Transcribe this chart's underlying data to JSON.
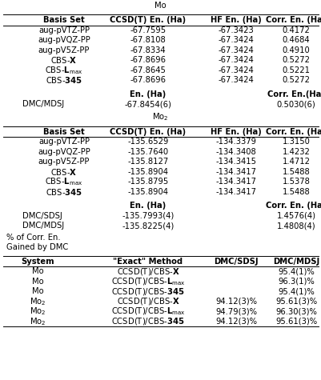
{
  "mo_rows": [
    [
      "aug-pVTZ-PP",
      "-67.7595",
      "-67.3423",
      "0.4172"
    ],
    [
      "aug-pVQZ-PP",
      "-67.8108",
      "-67.3424",
      "0.4684"
    ],
    [
      "aug-pV5Z-PP",
      "-67.8334",
      "-67.3424",
      "0.4910"
    ],
    [
      "CBS-$\\mathbf{X}$",
      "-67.8696",
      "-67.3424",
      "0.5272"
    ],
    [
      "CBS-$\\mathbf{L}$$_{\\mathrm{max}}$",
      "-67.8645",
      "-67.3424",
      "0.5221"
    ],
    [
      "CBS-$\\mathbf{345}$",
      "-67.8696",
      "-67.3424",
      "0.5272"
    ]
  ],
  "mo_dmc_rows": [
    [
      "DMC/MDSJ",
      "-67.8454(6)",
      "",
      "0.5030(6)"
    ]
  ],
  "mo2_rows": [
    [
      "aug-pVTZ-PP",
      "-135.6529",
      "-134.3379",
      "1.3150"
    ],
    [
      "aug-pVQZ-PP",
      "-135.7640",
      "-134.3408",
      "1.4232"
    ],
    [
      "aug-pV5Z-PP",
      "-135.8127",
      "-134.3415",
      "1.4712"
    ],
    [
      "CBS-$\\mathbf{X}$",
      "-135.8904",
      "-134.3417",
      "1.5488"
    ],
    [
      "CBS-$\\mathbf{L}$$_{\\mathrm{max}}$",
      "-135.8795",
      "-134.3417",
      "1.5378"
    ],
    [
      "CBS-$\\mathbf{345}$",
      "-135.8904",
      "-134.3417",
      "1.5488"
    ]
  ],
  "mo2_dmc_rows": [
    [
      "DMC/SDSJ",
      "-135.7993(4)",
      "",
      "1.4576(4)"
    ],
    [
      "DMC/MDSJ",
      "-135.8225(4)",
      "",
      "1.4808(4)"
    ]
  ],
  "pct_rows": [
    [
      "Mo",
      "CCSD(T)/CBS-$\\mathbf{X}$",
      "",
      "95.4(1)%"
    ],
    [
      "Mo",
      "CCSD(T)/CBS-$\\mathbf{L}$$_{\\mathrm{max}}$",
      "",
      "96.3(1)%"
    ],
    [
      "Mo",
      "CCSD(T)/CBS-$\\mathbf{345}$",
      "",
      "95.4(1)%"
    ],
    [
      "Mo$_2$",
      "CCSD(T)/CBS-$\\mathbf{X}$",
      "94.12(3)%",
      "95.61(3)%"
    ],
    [
      "Mo$_2$",
      "CCSD(T)/CBS-$\\mathbf{L}$$_{\\mathrm{max}}$",
      "94.79(3)%",
      "96.30(3)%"
    ],
    [
      "Mo$_2$",
      "CCSD(T)/CBS-$\\mathbf{345}$",
      "94.12(3)%",
      "95.61(3)%"
    ]
  ],
  "col_header": [
    "Basis Set",
    "CCSD(T) En. (Ha)",
    "HF En. (Ha)",
    "Corr. En. (Ha)"
  ],
  "pct_header": [
    "System",
    "\"Exact\" Method",
    "DMC/SDSJ",
    "DMC/MDSJ"
  ],
  "fs": 7.2,
  "bg": "white",
  "lc": "black",
  "tc": "black"
}
